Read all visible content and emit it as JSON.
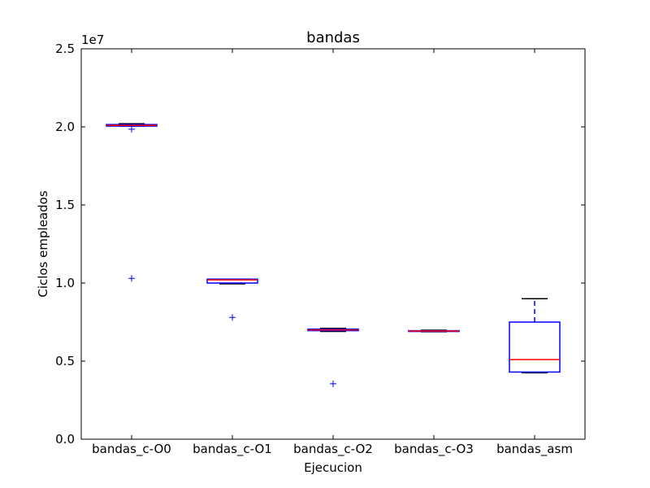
{
  "chart_data": {
    "type": "boxplot",
    "title": "bandas",
    "xlabel": "Ejecucion",
    "ylabel": "Ciclos empleados",
    "y_multiplier_label": "1e7",
    "ylim": [
      0,
      25000000
    ],
    "y_ticks": [
      0,
      5000000,
      10000000,
      15000000,
      20000000,
      25000000
    ],
    "y_tick_labels": [
      "0.0",
      "0.5",
      "1.0",
      "1.5",
      "2.0",
      "2.5"
    ],
    "grid": false,
    "categories": [
      "bandas_c-O0",
      "bandas_c-O1",
      "bandas_c-O2",
      "bandas_c-O3",
      "bandas_asm"
    ],
    "boxes": [
      {
        "category": "bandas_c-O0",
        "whisker_low": 20050000,
        "q1": 20050000,
        "median": 20100000,
        "q3": 20150000,
        "whisker_high": 20200000,
        "outliers": [
          19850000,
          10300000
        ]
      },
      {
        "category": "bandas_c-O1",
        "whisker_low": 9950000,
        "q1": 10000000,
        "median": 10200000,
        "q3": 10250000,
        "whisker_high": 10250000,
        "outliers": [
          7800000
        ]
      },
      {
        "category": "bandas_c-O2",
        "whisker_low": 6900000,
        "q1": 6950000,
        "median": 7000000,
        "q3": 7050000,
        "whisker_high": 7100000,
        "outliers": [
          3550000
        ]
      },
      {
        "category": "bandas_c-O3",
        "whisker_low": 6880000,
        "q1": 6900000,
        "median": 6930000,
        "q3": 6950000,
        "whisker_high": 6980000,
        "outliers": []
      },
      {
        "category": "bandas_asm",
        "whisker_low": 4250000,
        "q1": 4300000,
        "median": 5100000,
        "q3": 7500000,
        "whisker_high": 9000000,
        "outliers": []
      }
    ],
    "colors": {
      "box": "#0000ff",
      "median": "#ff0000",
      "whisker": "#0000ff",
      "cap": "#000000",
      "outlier": "#0000ff",
      "axes": "#000000"
    }
  }
}
